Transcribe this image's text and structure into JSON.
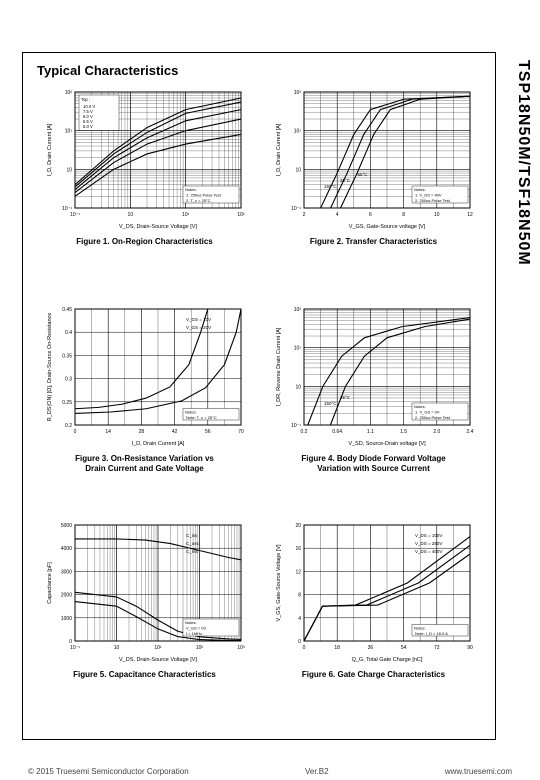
{
  "part_number": "TSP18N50M/TSF18N50M",
  "section_title": "Typical Characteristics",
  "footer": {
    "copyright": "© 2015  Truesemi  Semiconductor Corporation",
    "version": "Ver.B2",
    "url": "www.truesemi.com"
  },
  "charts": [
    {
      "caption": "Figure 1. On-Region Characteristics",
      "type": "loglog-multi",
      "xlabel": "V_DS, Drain-Source Voltage [V]",
      "ylabel": "I_D, Drain Current [A]",
      "xlim": [
        0.1,
        100
      ],
      "ylim": [
        0.1,
        100
      ],
      "legend_items": [
        "10.0 V",
        "7.5 V",
        "6.0 V",
        "5.5 V",
        "5.0 V"
      ],
      "legend_title": "Top :",
      "notes": [
        "1. 250us Pulse Test",
        "2. T_c = 25°C"
      ],
      "series": [
        {
          "pts": [
            [
              0.1,
              0.4
            ],
            [
              0.5,
              3
            ],
            [
              2,
              12
            ],
            [
              10,
              35
            ],
            [
              100,
              70
            ]
          ]
        },
        {
          "pts": [
            [
              0.1,
              0.35
            ],
            [
              0.5,
              2.5
            ],
            [
              2,
              9
            ],
            [
              10,
              28
            ],
            [
              100,
              55
            ]
          ]
        },
        {
          "pts": [
            [
              0.1,
              0.3
            ],
            [
              0.5,
              2
            ],
            [
              2,
              6.5
            ],
            [
              10,
              18
            ],
            [
              100,
              35
            ]
          ]
        },
        {
          "pts": [
            [
              0.1,
              0.25
            ],
            [
              0.5,
              1.5
            ],
            [
              2,
              4.5
            ],
            [
              10,
              10
            ],
            [
              100,
              20
            ]
          ]
        },
        {
          "pts": [
            [
              0.1,
              0.2
            ],
            [
              0.5,
              1.0
            ],
            [
              2,
              2.5
            ],
            [
              10,
              4.5
            ],
            [
              100,
              8
            ]
          ]
        }
      ],
      "grid_color": "#000",
      "line_color": "#000",
      "bg": "#ffffff"
    },
    {
      "caption": "Figure 2. Transfer Characteristics",
      "type": "semilogy-multi",
      "xlabel": "V_GS, Gate-Source voltage [V]",
      "ylabel": "I_D, Drain Current [A]",
      "xlim": [
        2,
        12
      ],
      "ylim": [
        0.1,
        100
      ],
      "temp_labels": [
        "150°C",
        "25°C",
        "-55°C"
      ],
      "notes": [
        "1. V_DS = 40V",
        "2. 250us Pulse Test"
      ],
      "series": [
        {
          "pts": [
            [
              3.0,
              0.1
            ],
            [
              4.0,
              0.8
            ],
            [
              5.0,
              8
            ],
            [
              6.0,
              35
            ],
            [
              8,
              65
            ],
            [
              12,
              78
            ]
          ]
        },
        {
          "pts": [
            [
              3.6,
              0.1
            ],
            [
              4.6,
              0.8
            ],
            [
              5.6,
              8
            ],
            [
              6.6,
              35
            ],
            [
              8.5,
              65
            ],
            [
              12,
              78
            ]
          ]
        },
        {
          "pts": [
            [
              4.2,
              0.1
            ],
            [
              5.2,
              0.8
            ],
            [
              6.2,
              8
            ],
            [
              7.2,
              35
            ],
            [
              9,
              65
            ],
            [
              12,
              78
            ]
          ]
        }
      ],
      "grid_color": "#000",
      "line_color": "#000",
      "bg": "#ffffff"
    },
    {
      "caption": "Figure 3. On-Resistance Variation  vs\nDrain Current and Gate Voltage",
      "type": "linear-multi",
      "xlabel": "I_D, Drain Current [A]",
      "ylabel": "R_DS(ON) [Ω], Drain-Source On-Resistance",
      "xlim": [
        0,
        70
      ],
      "ylim": [
        0.2,
        0.45
      ],
      "curve_labels": [
        "V_GS = 10V",
        "V_GS = 20V"
      ],
      "notes": [
        "Note: T_c = 25°C"
      ],
      "series": [
        {
          "pts": [
            [
              0,
              0.235
            ],
            [
              10,
              0.238
            ],
            [
              20,
              0.245
            ],
            [
              30,
              0.258
            ],
            [
              40,
              0.282
            ],
            [
              48,
              0.33
            ],
            [
              53,
              0.4
            ],
            [
              56,
              0.45
            ]
          ]
        },
        {
          "pts": [
            [
              0,
              0.225
            ],
            [
              15,
              0.228
            ],
            [
              30,
              0.235
            ],
            [
              45,
              0.252
            ],
            [
              55,
              0.28
            ],
            [
              63,
              0.33
            ],
            [
              68,
              0.4
            ],
            [
              70,
              0.45
            ]
          ]
        }
      ],
      "grid_color": "#000",
      "line_color": "#000",
      "bg": "#ffffff"
    },
    {
      "caption": "Figure 4. Body Diode Forward Voltage\nVariation with Source Current",
      "type": "semilogy-multi",
      "xlabel": "V_SD, Source-Drain voltage [V]",
      "ylabel": "I_DR, Reverse Drain Current [A]",
      "xlim": [
        0.2,
        2.4
      ],
      "ylim": [
        0.1,
        100
      ],
      "temp_labels": [
        "150°C",
        "25°C"
      ],
      "notes": [
        "1. V_GS = 0V",
        "2. 250us Pulse Test"
      ],
      "series": [
        {
          "pts": [
            [
              0.25,
              0.1
            ],
            [
              0.45,
              1
            ],
            [
              0.7,
              6
            ],
            [
              1.0,
              18
            ],
            [
              1.5,
              35
            ],
            [
              2.4,
              60
            ]
          ]
        },
        {
          "pts": [
            [
              0.55,
              0.1
            ],
            [
              0.75,
              1
            ],
            [
              1.0,
              6
            ],
            [
              1.3,
              18
            ],
            [
              1.8,
              35
            ],
            [
              2.4,
              55
            ]
          ]
        }
      ],
      "grid_color": "#000",
      "line_color": "#000",
      "bg": "#ffffff"
    },
    {
      "caption": "Figure 5. Capacitance Characteristics",
      "type": "semilogx-multi",
      "xlabel": "V_DS, Drain-Source Voltage [V]",
      "ylabel": "Capacitance [pF]",
      "xlim": [
        0.1,
        1000
      ],
      "ylim": [
        0,
        5000
      ],
      "curve_labels": [
        "C_iss",
        "C_oss",
        "C_rss"
      ],
      "notes": [
        "V_GS = 0V",
        "f = 1MHz"
      ],
      "series": [
        {
          "pts": [
            [
              0.1,
              4400
            ],
            [
              1,
              4400
            ],
            [
              5,
              4350
            ],
            [
              20,
              4200
            ],
            [
              100,
              3900
            ],
            [
              500,
              3600
            ],
            [
              1000,
              3500
            ]
          ]
        },
        {
          "pts": [
            [
              0.1,
              2100
            ],
            [
              1,
              1900
            ],
            [
              3,
              1500
            ],
            [
              10,
              900
            ],
            [
              30,
              420
            ],
            [
              100,
              180
            ],
            [
              500,
              90
            ],
            [
              1000,
              70
            ]
          ]
        },
        {
          "pts": [
            [
              0.1,
              1700
            ],
            [
              1,
              1500
            ],
            [
              3,
              1050
            ],
            [
              10,
              520
            ],
            [
              30,
              190
            ],
            [
              100,
              60
            ],
            [
              500,
              25
            ],
            [
              1000,
              20
            ]
          ]
        }
      ],
      "grid_color": "#000",
      "line_color": "#000",
      "bg": "#ffffff"
    },
    {
      "caption": "Figure 6. Gate Charge Characteristics",
      "type": "linear-multi",
      "xlabel": "Q_G, Total Gate Charge [nC]",
      "ylabel": "V_GS, Gate-Source Voltage [V]",
      "xlim": [
        0,
        90
      ],
      "ylim": [
        0,
        20
      ],
      "curve_labels": [
        "V_DS = 100V",
        "V_DS = 250V",
        "V_DS = 400V"
      ],
      "notes": [
        "Note: I_D = 18.0 A"
      ],
      "series": [
        {
          "pts": [
            [
              0,
              0
            ],
            [
              10,
              6
            ],
            [
              28,
              6.2
            ],
            [
              56,
              10
            ],
            [
              90,
              18
            ]
          ]
        },
        {
          "pts": [
            [
              0,
              0
            ],
            [
              10,
              6
            ],
            [
              34,
              6.2
            ],
            [
              62,
              10
            ],
            [
              90,
              16.5
            ]
          ]
        },
        {
          "pts": [
            [
              0,
              0
            ],
            [
              10,
              6
            ],
            [
              40,
              6.2
            ],
            [
              68,
              10
            ],
            [
              90,
              15
            ]
          ]
        }
      ],
      "grid_color": "#000",
      "line_color": "#000",
      "bg": "#ffffff"
    }
  ]
}
